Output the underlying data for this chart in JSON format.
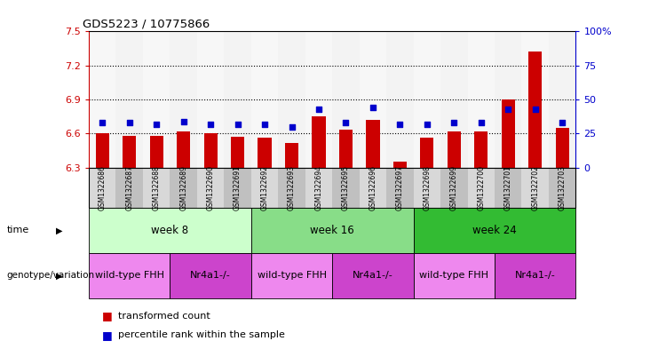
{
  "title": "GDS5223 / 10775866",
  "samples": [
    "GSM1322686",
    "GSM1322687",
    "GSM1322688",
    "GSM1322689",
    "GSM1322690",
    "GSM1322691",
    "GSM1322692",
    "GSM1322693",
    "GSM1322694",
    "GSM1322695",
    "GSM1322696",
    "GSM1322697",
    "GSM1322698",
    "GSM1322699",
    "GSM1322700",
    "GSM1322701",
    "GSM1322702",
    "GSM1322703"
  ],
  "bar_values": [
    6.6,
    6.58,
    6.58,
    6.62,
    6.6,
    6.57,
    6.56,
    6.52,
    6.75,
    6.63,
    6.72,
    6.35,
    6.56,
    6.62,
    6.62,
    6.9,
    7.32,
    6.65
  ],
  "percentile_values": [
    33,
    33,
    32,
    34,
    32,
    32,
    32,
    30,
    43,
    33,
    44,
    32,
    32,
    33,
    33,
    43,
    43,
    33
  ],
  "bar_color": "#cc0000",
  "percentile_color": "#0000cc",
  "ylim_left": [
    6.3,
    7.5
  ],
  "ylim_right": [
    0,
    100
  ],
  "yticks_left": [
    6.3,
    6.6,
    6.9,
    7.2,
    7.5
  ],
  "yticks_right": [
    0,
    25,
    50,
    75,
    100
  ],
  "ytick_labels_right": [
    "0",
    "25",
    "50",
    "75",
    "100%"
  ],
  "grid_values": [
    6.6,
    6.9,
    7.2
  ],
  "time_groups": [
    {
      "label": "week 8",
      "start": 0,
      "end": 6,
      "color": "#ccffcc"
    },
    {
      "label": "week 16",
      "start": 6,
      "end": 12,
      "color": "#88dd88"
    },
    {
      "label": "week 24",
      "start": 12,
      "end": 18,
      "color": "#33bb33"
    }
  ],
  "genotype_groups": [
    {
      "label": "wild-type FHH",
      "start": 0,
      "end": 3,
      "color": "#ee88ee"
    },
    {
      "label": "Nr4a1-/-",
      "start": 3,
      "end": 6,
      "color": "#cc44cc"
    },
    {
      "label": "wild-type FHH",
      "start": 6,
      "end": 9,
      "color": "#ee88ee"
    },
    {
      "label": "Nr4a1-/-",
      "start": 9,
      "end": 12,
      "color": "#cc44cc"
    },
    {
      "label": "wild-type FHH",
      "start": 12,
      "end": 15,
      "color": "#ee88ee"
    },
    {
      "label": "Nr4a1-/-",
      "start": 15,
      "end": 18,
      "color": "#cc44cc"
    }
  ],
  "legend_bar_label": "transformed count",
  "legend_pct_label": "percentile rank within the sample",
  "bar_width": 0.5,
  "time_row_label": "time",
  "genotype_row_label": "genotype/variation",
  "col_colors": [
    "#d8d8d8",
    "#c0c0c0"
  ]
}
